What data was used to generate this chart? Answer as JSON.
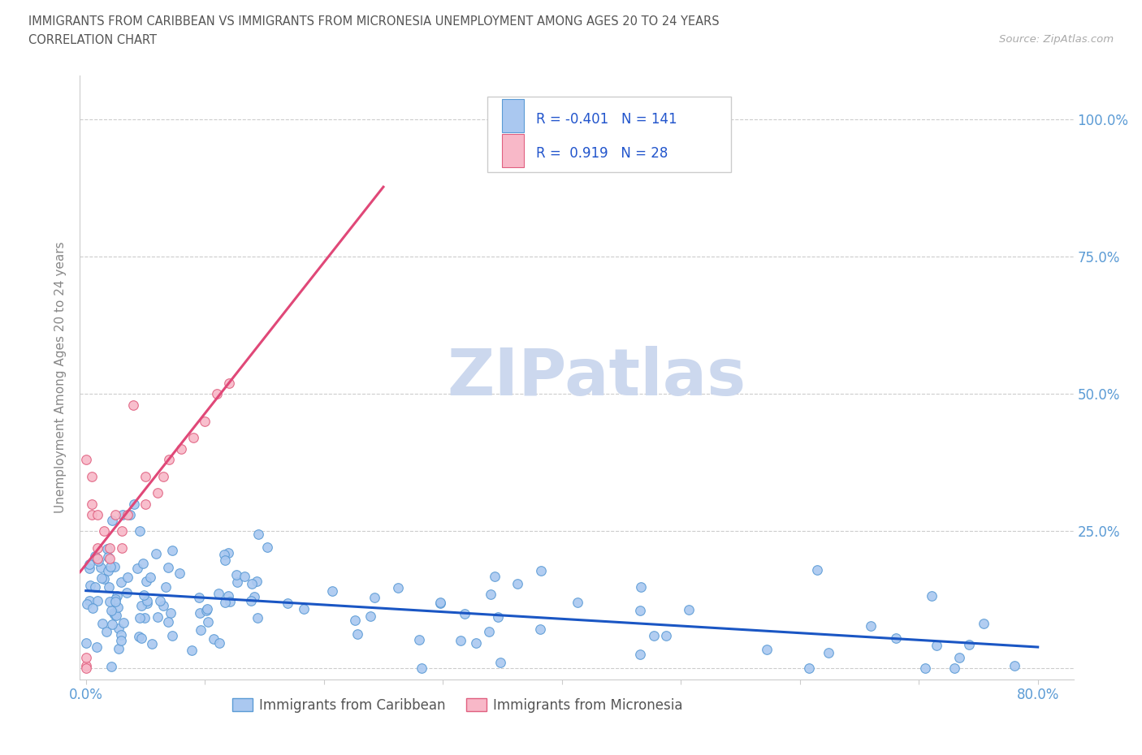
{
  "title_line1": "IMMIGRANTS FROM CARIBBEAN VS IMMIGRANTS FROM MICRONESIA UNEMPLOYMENT AMONG AGES 20 TO 24 YEARS",
  "title_line2": "CORRELATION CHART",
  "source_text": "Source: ZipAtlas.com",
  "ylabel": "Unemployment Among Ages 20 to 24 years",
  "xlim": [
    -0.005,
    0.83
  ],
  "ylim": [
    -0.02,
    1.08
  ],
  "caribbean_color": "#aac8f0",
  "caribbean_edge_color": "#5b9bd5",
  "micronesia_color": "#f8b8c8",
  "micronesia_edge_color": "#e06080",
  "trend_caribbean_color": "#1a56c4",
  "trend_micronesia_color": "#e04878",
  "r_caribbean": -0.401,
  "n_caribbean": 141,
  "r_micronesia": 0.919,
  "n_micronesia": 28,
  "legend_label_caribbean": "Immigrants from Caribbean",
  "legend_label_micronesia": "Immigrants from Micronesia",
  "watermark_text": "ZIPatlas",
  "watermark_color": "#ccd8ee",
  "grid_color": "#cccccc",
  "background_color": "#ffffff",
  "title_color": "#555555",
  "tick_label_color": "#5b9bd5",
  "ylabel_color": "#888888"
}
